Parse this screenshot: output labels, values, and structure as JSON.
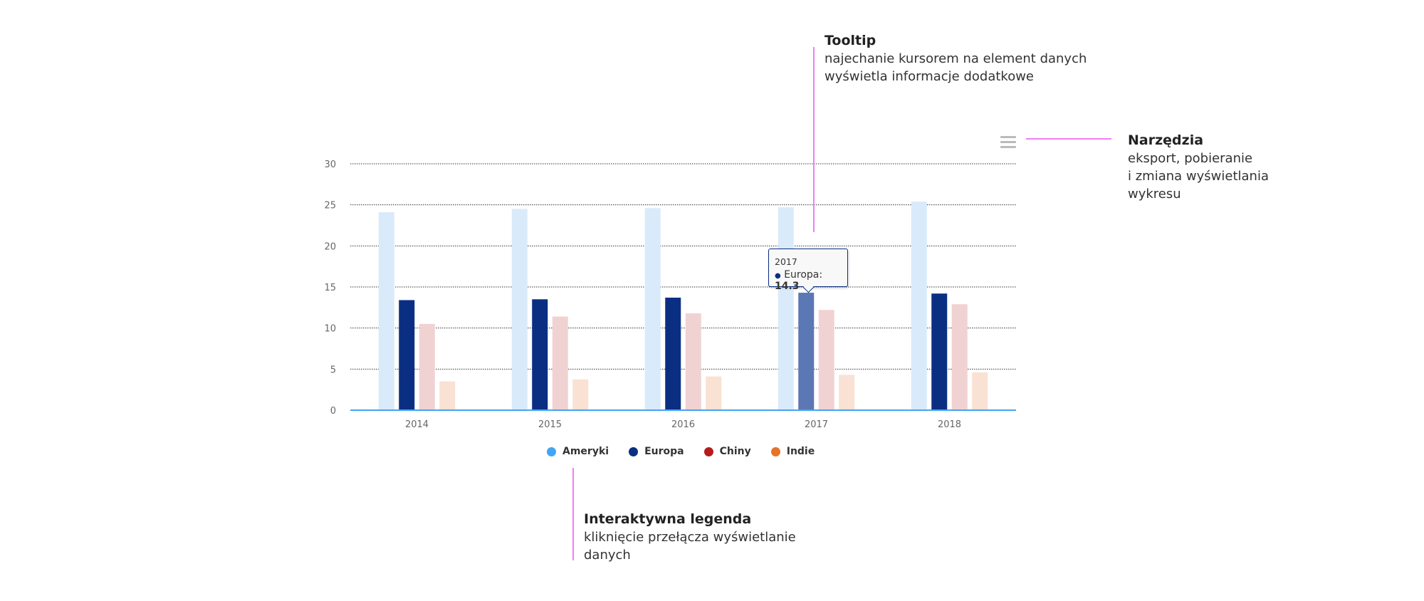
{
  "chart_data": {
    "type": "bar",
    "categories": [
      "2014",
      "2015",
      "2016",
      "2017",
      "2018"
    ],
    "series": [
      {
        "name": "Ameryki",
        "color": "#42a5f5",
        "values": [
          24.1,
          24.5,
          24.6,
          24.7,
          25.4
        ]
      },
      {
        "name": "Europa",
        "color": "#0a2f82",
        "values": [
          13.4,
          13.5,
          13.7,
          14.3,
          14.2
        ]
      },
      {
        "name": "Chiny",
        "color": "#b71c1c",
        "values": [
          10.5,
          11.4,
          11.8,
          12.2,
          12.9
        ]
      },
      {
        "name": "Indie",
        "color": "#e57328",
        "values": [
          3.5,
          3.75,
          4.1,
          4.3,
          4.6
        ]
      }
    ],
    "ylim": [
      0,
      30
    ],
    "yticks": [
      0,
      5,
      10,
      15,
      20,
      25,
      30
    ],
    "grid": true,
    "legend": "bottom-center",
    "highlighted": {
      "series": "Europa",
      "category": "2017"
    }
  },
  "tooltip": {
    "title": "2017",
    "series": "Europa:",
    "value": "14.3"
  },
  "annotations": {
    "tooltip": {
      "title": "Tooltip",
      "lines": [
        "najechanie kursorem na element danych",
        "wyświetla informacje dodatkowe"
      ]
    },
    "tools": {
      "title": "Narzędzia",
      "lines": [
        "eksport, pobieranie",
        "i zmiana wyświetlania",
        "wykresu"
      ]
    },
    "legend": {
      "title": "Interaktywna legenda",
      "lines": [
        "kliknięcie przełącza wyświetlanie",
        "danych"
      ]
    }
  },
  "menu_icon": "hamburger-icon"
}
